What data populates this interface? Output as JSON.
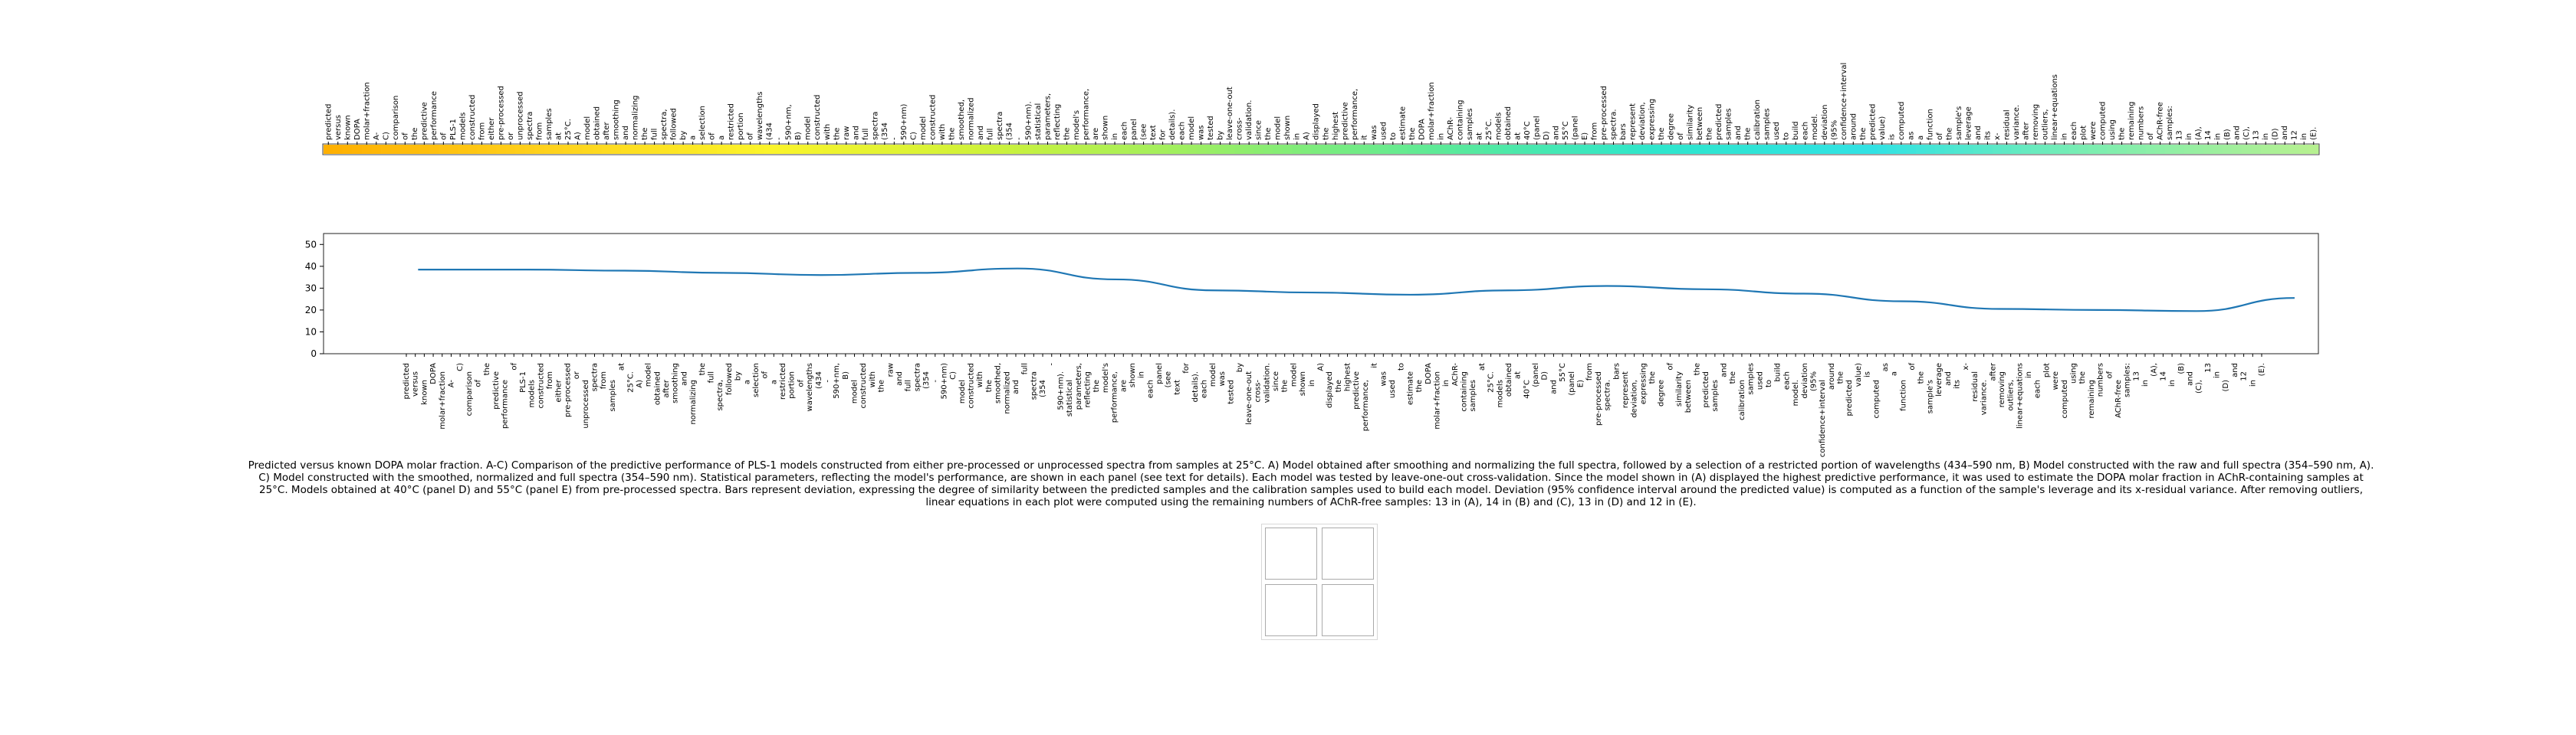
{
  "chart_data": [
    {
      "type": "heatmap",
      "title": "",
      "tokens": [
        "predicted",
        "versus",
        "known",
        "DOPA",
        "molar+fraction",
        "A-",
        "C)",
        "comparison",
        "of",
        "the",
        "predictive",
        "performance",
        "of",
        "PLS-1",
        "models",
        "constructed",
        "from",
        "either",
        "pre-processed",
        "or",
        "unprocessed",
        "spectra",
        "from",
        "samples",
        "at",
        "25°C.",
        "A)",
        "model",
        "obtained",
        "after",
        "smoothing",
        "and",
        "normalizing",
        "the",
        "full",
        "spectra,",
        "followed",
        "by",
        "a",
        "selection",
        "of",
        "a",
        "restricted",
        "portion",
        "of",
        "wavelengths",
        "(434",
        "-",
        "590+nm,",
        "B)",
        "model",
        "constructed",
        "with",
        "the",
        "raw",
        "and",
        "full",
        "spectra",
        "(354",
        "-",
        "590+nm)",
        "C)",
        "model",
        "constructed",
        "with",
        "the",
        "smoothed,",
        "normalized",
        "and",
        "full",
        "spectra",
        "(354",
        "-",
        "590+nm).",
        "statistical",
        "parameters,",
        "reflecting",
        "the",
        "model's",
        "performance,",
        "are",
        "shown",
        "in",
        "each",
        "panel",
        "(see",
        "text",
        "for",
        "details).",
        "each",
        "model",
        "was",
        "tested",
        "by",
        "leave-one-out",
        "cross-",
        "validation.",
        "since",
        "the",
        "model",
        "shown",
        "in",
        "A)",
        "displayed",
        "the",
        "highest",
        "predictive",
        "performance,",
        "it",
        "was",
        "used",
        "to",
        "estimate",
        "the",
        "DOPA",
        "molar+fraction",
        "in",
        "AChR-",
        "containing",
        "samples",
        "at",
        "25°C.",
        "models",
        "obtained",
        "at",
        "40°C",
        "(panel",
        "D)",
        "and",
        "55°C",
        "(panel",
        "E)",
        "from",
        "pre-processed",
        "spectra.",
        "bars",
        "represent",
        "deviation,",
        "expressing",
        "the",
        "degree",
        "of",
        "similarity",
        "between",
        "the",
        "predicted",
        "samples",
        "and",
        "the",
        "calibration",
        "samples",
        "used",
        "to",
        "build",
        "each",
        "model.",
        "deviation",
        "(95%",
        "confidence+interval",
        "around",
        "the",
        "predicted",
        "value)",
        "is",
        "computed",
        "as",
        "a",
        "function",
        "of",
        "the",
        "sample's",
        "leverage",
        "and",
        "its",
        "x-",
        "residual",
        "variance.",
        "after",
        "removing",
        "outliers,",
        "linear+equations",
        "in",
        "each",
        "plot",
        "were",
        "computed",
        "using",
        "the",
        "remaining",
        "numbers",
        "of",
        "AChR-free",
        "samples:",
        "13",
        "in",
        "(A),",
        "14",
        "in",
        "(B)",
        "and",
        "(C),",
        "13",
        "in",
        "(D)",
        "and",
        "12",
        "in",
        "(E)."
      ],
      "colormap_stops": [
        "#ffb000",
        "#ffd21c",
        "#fbf42a",
        "#cdf23a",
        "#98ee66",
        "#5eea96",
        "#2ee6cc",
        "#30e2e4",
        "#7deeb0",
        "#b6f090"
      ]
    },
    {
      "type": "line",
      "title": "",
      "xlabel": "",
      "ylabel": "",
      "ylim": [
        0,
        55
      ],
      "yticks": [
        "0",
        "10",
        "20",
        "30",
        "40",
        "50"
      ],
      "series": [
        {
          "color": "#1f77b4",
          "x_fraction": [
            0.045,
            0.1,
            0.15,
            0.2,
            0.25,
            0.3,
            0.35,
            0.4,
            0.45,
            0.5,
            0.55,
            0.6,
            0.65,
            0.7,
            0.75,
            0.8,
            0.85,
            0.9,
            0.95,
            1.0
          ],
          "values": [
            38.5,
            38.5,
            38.0,
            37.0,
            36.0,
            37.0,
            39.0,
            34.0,
            29.0,
            28.0,
            27.0,
            29.0,
            31.0,
            29.5,
            27.5,
            24.0,
            20.5,
            20.0,
            19.5,
            25.5
          ]
        }
      ],
      "x_tick_labels": [
        "predicted",
        "versus",
        "known",
        "DOPA",
        "molar+fraction",
        "A-",
        "C)",
        "comparison",
        "of",
        "the",
        "predictive",
        "performance",
        "of",
        "PLS-1",
        "models",
        "constructed",
        "from",
        "either",
        "pre-processed",
        "or",
        "unprocessed",
        "spectra",
        "from",
        "samples",
        "at",
        "25°C.",
        "A)",
        "model",
        "obtained",
        "after",
        "smoothing",
        "and",
        "normalizing",
        "the",
        "full",
        "spectra,",
        "followed",
        "by",
        "a",
        "selection",
        "of",
        "a",
        "restricted",
        "portion",
        "of",
        "wavelengths",
        "(434",
        "-",
        "590+nm,",
        "B)",
        "model",
        "constructed",
        "with",
        "the",
        "raw",
        "and",
        "full",
        "spectra",
        "(354",
        "-",
        "590+nm)",
        "C)",
        "model",
        "constructed",
        "with",
        "the",
        "smoothed,",
        "normalized",
        "and",
        "full",
        "spectra",
        "(354",
        "-",
        "590+nm).",
        "statistical",
        "parameters,",
        "reflecting",
        "the",
        "model's",
        "performance,",
        "are",
        "shown",
        "in",
        "each",
        "panel",
        "(see",
        "text",
        "for",
        "details).",
        "each",
        "model",
        "was",
        "tested",
        "by",
        "leave-one-out",
        "cross-",
        "validation.",
        "since",
        "the",
        "model",
        "shown",
        "in",
        "A)",
        "displayed",
        "the",
        "highest",
        "predictive",
        "performance,",
        "it",
        "was",
        "used",
        "to",
        "estimate",
        "the",
        "DOPA",
        "molar+fraction",
        "in",
        "AChR-",
        "containing",
        "samples",
        "at",
        "25°C.",
        "models",
        "obtained",
        "at",
        "40°C",
        "(panel",
        "D)",
        "and",
        "55°C",
        "(panel",
        "E)",
        "from",
        "pre-processed",
        "spectra.",
        "bars",
        "represent",
        "deviation,",
        "expressing",
        "the",
        "degree",
        "of",
        "similarity",
        "between",
        "the",
        "predicted",
        "samples",
        "and",
        "the",
        "calibration",
        "samples",
        "used",
        "to",
        "build",
        "each",
        "model.",
        "deviation",
        "(95%",
        "confidence+interval",
        "around",
        "the",
        "predicted",
        "value)",
        "is",
        "computed",
        "as",
        "a",
        "function",
        "of",
        "the",
        "sample's",
        "leverage",
        "and",
        "its",
        "x-",
        "residual",
        "variance.",
        "after",
        "removing",
        "outliers,",
        "linear+equations",
        "in",
        "each",
        "plot",
        "were",
        "computed",
        "using",
        "the",
        "remaining",
        "numbers",
        "of",
        "AChR-free",
        "samples:",
        "13",
        "in",
        "(A),",
        "14",
        "in",
        "(B)",
        "and",
        "(C),",
        "13",
        "in",
        "(D)",
        "and",
        "12",
        "in",
        "(E)."
      ]
    }
  ],
  "caption": "Predicted versus known DOPA molar fraction. A-C) Comparison of the predictive performance of PLS-1 models constructed from either pre-processed or unprocessed spectra from samples at 25°C. A) Model obtained after smoothing and normalizing the full spectra, followed by a selection of a restricted portion of wavelengths (434–590 nm, B) Model constructed with the raw and full spectra (354–590 nm, A). C) Model constructed with the smoothed, normalized and full spectra (354–590 nm). Statistical parameters, reflecting the model's performance, are shown in each panel (see text for details). Each model was tested by leave-one-out cross-validation. Since the model shown in (A) displayed the highest predictive performance, it was used to estimate the DOPA molar fraction in AChR-containing samples at 25°C. Models obtained at 40°C (panel D) and 55°C (panel E) from pre-processed spectra. Bars represent deviation, expressing the degree of similarity between the predicted samples and the calibration samples used to build each model. Deviation (95% confidence interval around the predicted value) is computed as a function of the sample's leverage and its x-residual variance. After removing outliers, linear equations in each plot were computed using the remaining numbers of AChR-free samples: 13 in (A), 14 in (B) and (C), 13 in (D) and 12 in (E)."
}
